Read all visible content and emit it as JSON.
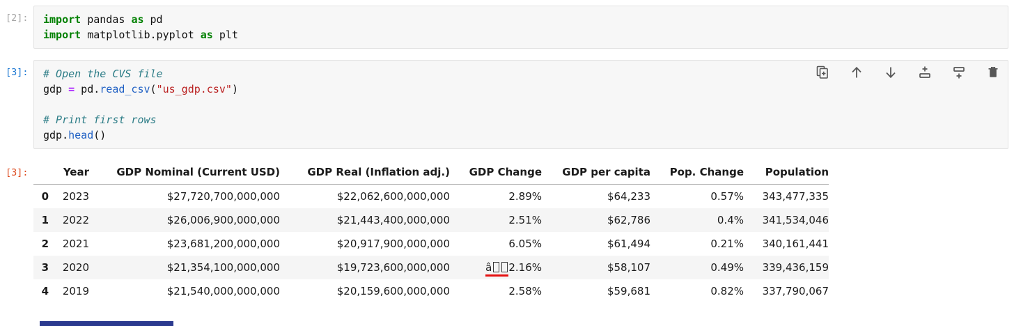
{
  "app": "jupyter-notebook",
  "colors": {
    "keyword": "#008000",
    "comment": "#2d7d87",
    "operator": "#AA22FF",
    "function": "#2161c4",
    "string": "#BA2121",
    "prompt_idle": "#a6a6a6",
    "prompt_input": "#1976d2",
    "prompt_output": "#dd4a1e",
    "cell_background": "#f7f7f7",
    "row_stripe": "#f5f5f5",
    "mojibake_underline": "#e51010"
  },
  "cells": [
    {
      "prompt": "[2]:",
      "lines": [
        [
          {
            "c": "kw",
            "t": "import"
          },
          {
            "c": "",
            "t": " pandas "
          },
          {
            "c": "kw",
            "t": "as"
          },
          {
            "c": "",
            "t": " pd"
          }
        ],
        [
          {
            "c": "kw",
            "t": "import"
          },
          {
            "c": "",
            "t": " matplotlib.pyplot "
          },
          {
            "c": "kw",
            "t": "as"
          },
          {
            "c": "",
            "t": " plt"
          }
        ]
      ]
    },
    {
      "prompt": "[3]:",
      "lines": [
        [
          {
            "c": "com",
            "t": "# Open the CVS file"
          }
        ],
        [
          {
            "c": "",
            "t": "gdp "
          },
          {
            "c": "op",
            "t": "="
          },
          {
            "c": "",
            "t": " pd."
          },
          {
            "c": "fn",
            "t": "read_csv"
          },
          {
            "c": "",
            "t": "("
          },
          {
            "c": "str",
            "t": "\"us_gdp.csv\""
          },
          {
            "c": "",
            "t": ")"
          }
        ],
        [],
        [
          {
            "c": "com",
            "t": "# Print first rows"
          }
        ],
        [
          {
            "c": "",
            "t": "gdp."
          },
          {
            "c": "fn",
            "t": "head"
          },
          {
            "c": "",
            "t": "()"
          }
        ]
      ],
      "toolbar_icons": [
        "duplicate-cell-icon",
        "move-cell-up-icon",
        "move-cell-down-icon",
        "insert-cell-above-icon",
        "insert-cell-below-icon",
        "delete-cell-icon"
      ]
    }
  ],
  "output": {
    "prompt": "[3]:",
    "table": {
      "columns": [
        "Year",
        "GDP Nominal (Current USD)",
        "GDP Real (Inflation adj.)",
        "GDP Change",
        "GDP per capita",
        "Pop. Change",
        "Population"
      ],
      "rows": [
        {
          "index": "0",
          "cells": [
            "2023",
            "$27,720,700,000,000",
            "$22,062,600,000,000",
            "2.89%",
            "$64,233",
            "0.57%",
            "343,477,335"
          ]
        },
        {
          "index": "1",
          "cells": [
            "2022",
            "$26,006,900,000,000",
            "$21,443,400,000,000",
            "2.51%",
            "$62,786",
            "0.4%",
            "341,534,046"
          ]
        },
        {
          "index": "2",
          "cells": [
            "2021",
            "$23,681,200,000,000",
            "$20,917,900,000,000",
            "6.05%",
            "$61,494",
            "0.21%",
            "340,161,441"
          ]
        },
        {
          "index": "3",
          "cells": [
            "2020",
            "$21,354,100,000,000",
            "$19,723,600,000,000",
            {
              "pre": "â",
              "tofu": 2,
              "text": "2.16%",
              "redline": true
            },
            "$58,107",
            "0.49%",
            "339,436,159"
          ]
        },
        {
          "index": "4",
          "cells": [
            "2019",
            "$21,540,000,000,000",
            "$20,159,600,000,000",
            "2.58%",
            "$59,681",
            "0.82%",
            "337,790,067"
          ]
        }
      ]
    }
  }
}
